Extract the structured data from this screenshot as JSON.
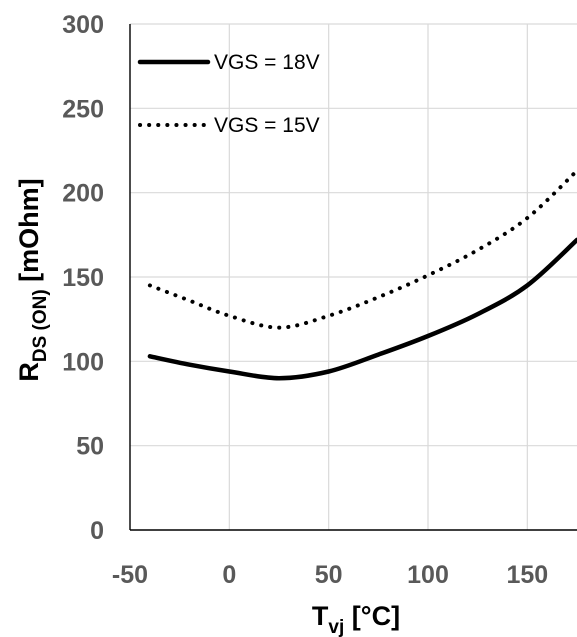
{
  "chart_data": {
    "type": "line",
    "title": "",
    "xlabel": {
      "main": "T",
      "sub": "vj",
      "unit": " [°C]"
    },
    "ylabel": {
      "main": "R",
      "sub": "DS (ON)",
      "unit": " [mOhm]"
    },
    "xlim": [
      -50,
      175
    ],
    "ylim": [
      0,
      300
    ],
    "xticks": [
      "-50",
      "0",
      "50",
      "100",
      "150"
    ],
    "yticks": [
      "0",
      "50",
      "100",
      "150",
      "200",
      "250",
      "300"
    ],
    "grid": true,
    "legend_position": "top-left",
    "series": [
      {
        "name": "VGS = 18V",
        "style": "solid",
        "color": "#000000",
        "x": [
          -40,
          -20,
          0,
          25,
          50,
          75,
          100,
          125,
          150,
          175
        ],
        "y": [
          103,
          98,
          94,
          90,
          94,
          104,
          115,
          128,
          145,
          172
        ]
      },
      {
        "name": "VGS = 15V",
        "style": "dotted",
        "color": "#000000",
        "x": [
          -40,
          -20,
          0,
          25,
          50,
          75,
          100,
          125,
          150,
          175
        ],
        "y": [
          145,
          136,
          127,
          120,
          127,
          138,
          151,
          166,
          185,
          213
        ]
      }
    ]
  }
}
